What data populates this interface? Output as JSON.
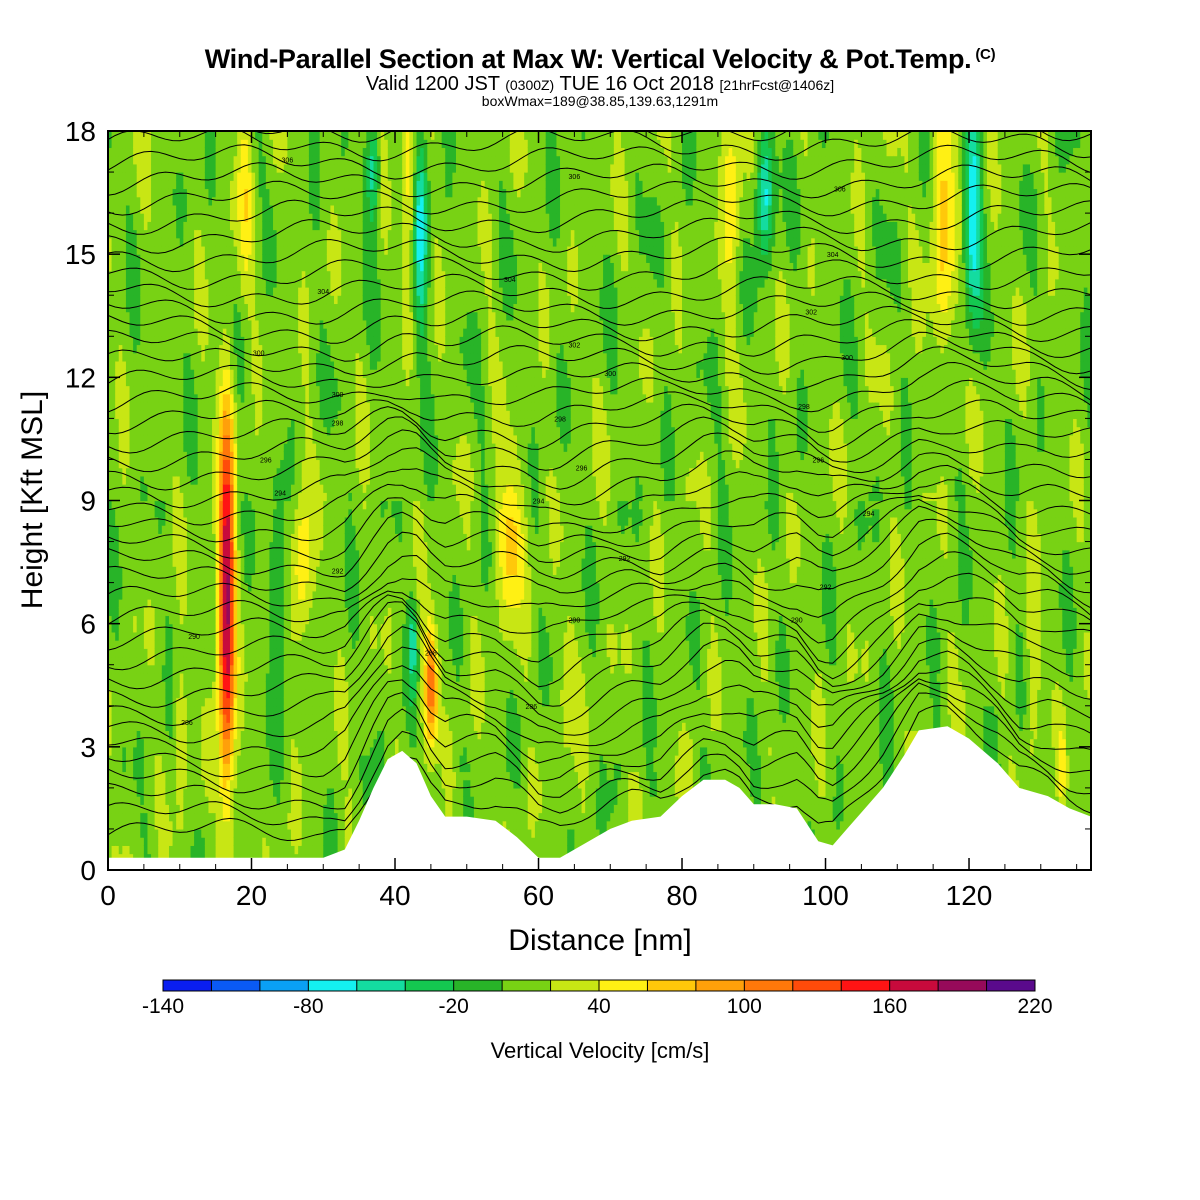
{
  "header": {
    "title": "Wind-Parallel Section at Max W: Vertical Velocity & Pot.Temp.",
    "title_mark": "(C)",
    "valid_part1": "Valid 1200 JST",
    "valid_small1": "(0300Z)",
    "valid_part2": "TUE 16 Oct 2018",
    "valid_small2": "[21hrFcst@1406z]",
    "box_info": "boxWmax=189@38.85,139.63,1291m"
  },
  "chart_data": {
    "type": "heatmap",
    "xlabel": "Distance [nm]",
    "ylabel": "Height [Kft MSL]",
    "xlim": [
      0,
      137
    ],
    "ylim": [
      0,
      18
    ],
    "xticks": [
      0,
      20,
      40,
      60,
      80,
      100,
      120
    ],
    "yticks": [
      0,
      3,
      6,
      9,
      12,
      15,
      18
    ],
    "colorbar": {
      "title": "Vertical Velocity [cm/s]",
      "min": -140,
      "max": 220,
      "step": 20,
      "labeled_ticks": [
        -140,
        -80,
        -20,
        40,
        100,
        160,
        220
      ],
      "colors": [
        "#0a1ef0",
        "#0a5af5",
        "#0aa0f5",
        "#14f0f0",
        "#14dca0",
        "#14c850",
        "#28b428",
        "#78d214",
        "#c8e614",
        "#fff014",
        "#ffc80a",
        "#ffa00a",
        "#ff780a",
        "#ff4b0a",
        "#ff1414",
        "#c80a3c",
        "#960a5a",
        "#5a0a8c"
      ]
    },
    "terrain_kft": [
      [
        0,
        0.3
      ],
      [
        5,
        0.3
      ],
      [
        10,
        0.3
      ],
      [
        15,
        0.3
      ],
      [
        20,
        0.3
      ],
      [
        25,
        0.3
      ],
      [
        30,
        0.3
      ],
      [
        33,
        0.5
      ],
      [
        35,
        1.2
      ],
      [
        37,
        2.0
      ],
      [
        39,
        2.7
      ],
      [
        41,
        2.9
      ],
      [
        43,
        2.6
      ],
      [
        45,
        1.8
      ],
      [
        47,
        1.3
      ],
      [
        50,
        1.3
      ],
      [
        54,
        1.2
      ],
      [
        57,
        0.8
      ],
      [
        60,
        0.3
      ],
      [
        63,
        0.3
      ],
      [
        66,
        0.6
      ],
      [
        70,
        1.0
      ],
      [
        73,
        1.2
      ],
      [
        77,
        1.3
      ],
      [
        80,
        1.8
      ],
      [
        83,
        2.2
      ],
      [
        86,
        2.2
      ],
      [
        88,
        2.0
      ],
      [
        90,
        1.6
      ],
      [
        93,
        1.6
      ],
      [
        96,
        1.5
      ],
      [
        99,
        0.7
      ],
      [
        101,
        0.6
      ],
      [
        103,
        1.0
      ],
      [
        105,
        1.4
      ],
      [
        108,
        2.0
      ],
      [
        111,
        2.8
      ],
      [
        113,
        3.4
      ],
      [
        117,
        3.5
      ],
      [
        120,
        3.2
      ],
      [
        124,
        2.6
      ],
      [
        127,
        2.0
      ],
      [
        131,
        1.8
      ],
      [
        134,
        1.5
      ],
      [
        137,
        1.3
      ]
    ],
    "updrafts": [
      {
        "x": 16.5,
        "z_center": 6.5,
        "half_height": 4.5,
        "half_width": 1.1,
        "w_max": 189
      },
      {
        "x": 45.0,
        "z_center": 4.5,
        "half_height": 1.4,
        "half_width": 0.9,
        "w_max": 120
      },
      {
        "x": 56.0,
        "z_center": 8.0,
        "half_height": 1.8,
        "half_width": 1.8,
        "w_max": 70
      },
      {
        "x": 27.0,
        "z_center": 7.5,
        "half_height": 2.0,
        "half_width": 1.3,
        "w_max": 60
      },
      {
        "x": 42.0,
        "z_center": 16.5,
        "half_height": 2.5,
        "half_width": 1.2,
        "w_max": 55
      },
      {
        "x": 116.5,
        "z_center": 16.0,
        "half_height": 3.0,
        "half_width": 1.8,
        "w_max": 65
      },
      {
        "x": 87.0,
        "z_center": 16.5,
        "half_height": 2.5,
        "half_width": 1.4,
        "w_max": 50
      },
      {
        "x": 19.0,
        "z_center": 16.5,
        "half_height": 2.5,
        "half_width": 1.0,
        "w_max": 45
      },
      {
        "x": 10.0,
        "z_center": 3.2,
        "half_height": 1.8,
        "half_width": 0.8,
        "w_max": 40
      },
      {
        "x": 129.0,
        "z_center": 5.0,
        "half_height": 1.8,
        "half_width": 0.9,
        "w_max": 45
      },
      {
        "x": 133.0,
        "z_center": 2.5,
        "half_height": 1.2,
        "half_width": 0.6,
        "w_max": 40
      },
      {
        "x": 64.0,
        "z_center": 4.5,
        "half_height": 1.8,
        "half_width": 1.1,
        "w_max": 35
      }
    ],
    "downdrafts": [
      {
        "x": 43.5,
        "z_center": 15.5,
        "half_height": 2.5,
        "half_width": 1.0,
        "w_min": -70
      },
      {
        "x": 120.5,
        "z_center": 16.0,
        "half_height": 2.5,
        "half_width": 1.2,
        "w_min": -80
      },
      {
        "x": 91.5,
        "z_center": 16.5,
        "half_height": 1.5,
        "half_width": 1.2,
        "w_min": -70
      },
      {
        "x": 37.0,
        "z_center": 17.0,
        "half_height": 1.2,
        "half_width": 0.9,
        "w_min": -60
      },
      {
        "x": 42.5,
        "z_center": 5.5,
        "half_height": 1.2,
        "half_width": 0.6,
        "w_min": -50
      },
      {
        "x": 24.0,
        "z_center": 6.5,
        "half_height": 2.5,
        "half_width": 1.3,
        "w_min": -25
      }
    ],
    "theta_contour_labels": [
      {
        "x": 25,
        "z": 17.3,
        "text": "306"
      },
      {
        "x": 65,
        "z": 16.9,
        "text": "306"
      },
      {
        "x": 102,
        "z": 16.6,
        "text": "306"
      },
      {
        "x": 56,
        "z": 14.4,
        "text": "304"
      },
      {
        "x": 101,
        "z": 15.0,
        "text": "304"
      },
      {
        "x": 30,
        "z": 14.1,
        "text": "304"
      },
      {
        "x": 98,
        "z": 13.6,
        "text": "302"
      },
      {
        "x": 65,
        "z": 12.8,
        "text": "302"
      },
      {
        "x": 21,
        "z": 12.6,
        "text": "300"
      },
      {
        "x": 70,
        "z": 12.1,
        "text": "300"
      },
      {
        "x": 103,
        "z": 12.5,
        "text": "300"
      },
      {
        "x": 32,
        "z": 11.6,
        "text": "300"
      },
      {
        "x": 32,
        "z": 10.9,
        "text": "298"
      },
      {
        "x": 63,
        "z": 11.0,
        "text": "298"
      },
      {
        "x": 97,
        "z": 11.3,
        "text": "298"
      },
      {
        "x": 22,
        "z": 10.0,
        "text": "296"
      },
      {
        "x": 66,
        "z": 9.8,
        "text": "296"
      },
      {
        "x": 99,
        "z": 10.0,
        "text": "296"
      },
      {
        "x": 24,
        "z": 9.2,
        "text": "294"
      },
      {
        "x": 60,
        "z": 9.0,
        "text": "294"
      },
      {
        "x": 106,
        "z": 8.7,
        "text": "294"
      },
      {
        "x": 72,
        "z": 7.6,
        "text": "292"
      },
      {
        "x": 32,
        "z": 7.3,
        "text": "292"
      },
      {
        "x": 100,
        "z": 6.9,
        "text": "292"
      },
      {
        "x": 65,
        "z": 6.1,
        "text": "290"
      },
      {
        "x": 96,
        "z": 6.1,
        "text": "290"
      },
      {
        "x": 12,
        "z": 5.7,
        "text": "290"
      },
      {
        "x": 45,
        "z": 5.3,
        "text": "288"
      },
      {
        "x": 59,
        "z": 4.0,
        "text": "286"
      },
      {
        "x": 11,
        "z": 3.6,
        "text": "286"
      }
    ]
  }
}
